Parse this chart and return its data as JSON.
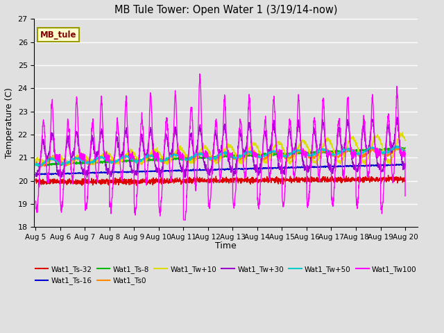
{
  "title": "MB Tule Tower: Open Water 1 (3/19/14-now)",
  "xlabel": "Time",
  "ylabel": "Temperature (C)",
  "ylim": [
    18.0,
    27.0
  ],
  "yticks": [
    18.0,
    19.0,
    20.0,
    21.0,
    22.0,
    23.0,
    24.0,
    25.0,
    26.0,
    27.0
  ],
  "x_tick_labels": [
    "Aug 5",
    "Aug 6",
    "Aug 7",
    "Aug 8",
    "Aug 9",
    "Aug 10",
    "Aug 11",
    "Aug 12",
    "Aug 13",
    "Aug 14",
    "Aug 15",
    "Aug 16",
    "Aug 17",
    "Aug 18",
    "Aug 19",
    "Aug 20"
  ],
  "bg_color": "#e0e0e0",
  "plot_bg_color": "#e0e0e0",
  "grid_color": "white",
  "series": [
    {
      "name": "Wat1_Ts-32",
      "color": "#dd0000"
    },
    {
      "name": "Wat1_Ts-16",
      "color": "#0000cc"
    },
    {
      "name": "Wat1_Ts-8",
      "color": "#00bb00"
    },
    {
      "name": "Wat1_Ts0",
      "color": "#ff8800"
    },
    {
      "name": "Wat1_Tw+10",
      "color": "#dddd00"
    },
    {
      "name": "Wat1_Tw+30",
      "color": "#9900cc"
    },
    {
      "name": "Wat1_Tw+50",
      "color": "#00cccc"
    },
    {
      "name": "Wat1_Tw100",
      "color": "#ff00ff"
    }
  ],
  "station_label": "MB_tule",
  "station_label_color": "#800000",
  "station_label_bg": "#ffffcc",
  "station_label_border": "#999900"
}
